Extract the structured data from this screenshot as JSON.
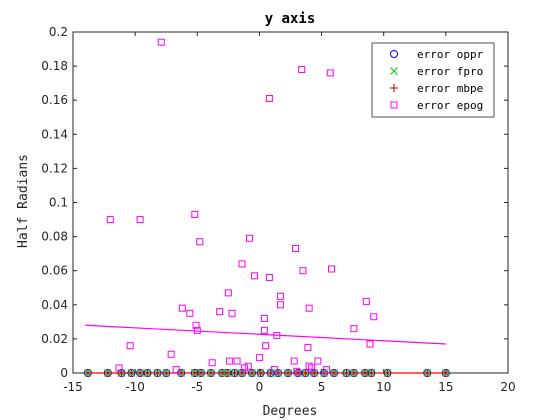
{
  "chart_data": {
    "type": "scatter",
    "title": "y axis",
    "xlabel": "Degrees",
    "ylabel": "Half Radians",
    "xlim": [
      -15,
      20
    ],
    "ylim": [
      0,
      0.2
    ],
    "xticks": [
      -15,
      -10,
      -5,
      0,
      5,
      10,
      15,
      20
    ],
    "yticks": [
      0,
      0.02,
      0.04,
      0.06,
      0.08,
      0.1,
      0.12,
      0.14,
      0.16,
      0.18,
      0.2
    ],
    "xtick_labels": [
      "-15",
      "-10",
      "-5",
      "0",
      "5",
      "10",
      "15",
      "20"
    ],
    "ytick_labels": [
      "0",
      "0.02",
      "0.04",
      "0.06",
      "0.08",
      "0.1",
      "0.12",
      "0.14",
      "0.16",
      "0.18",
      "0.2"
    ],
    "grid": false,
    "legend_position": "top-right",
    "series": [
      {
        "name": "error oppr",
        "marker": "circle",
        "color": "#0000ff",
        "x": [
          -13.8,
          -12.2,
          -11.1,
          -10.3,
          -9.6,
          -9.0,
          -8.2,
          -7.5,
          -6.3,
          -5.2,
          -4.7,
          -3.9,
          -3.0,
          -2.6,
          -2.0,
          -1.4,
          -0.6,
          0.1,
          0.9,
          1.5,
          2.3,
          3.1,
          3.7,
          4.4,
          5.2,
          6.0,
          7.0,
          7.6,
          8.5,
          9.0,
          10.3,
          13.5,
          15.0
        ],
        "y": [
          0,
          0,
          0,
          0,
          0,
          0,
          0,
          0,
          0,
          0,
          0,
          0,
          0,
          0,
          0,
          0,
          0,
          0,
          0,
          0,
          0,
          0,
          0,
          0,
          0,
          0,
          0,
          0,
          0,
          0,
          0,
          0,
          0
        ]
      },
      {
        "name": "error fpro",
        "marker": "x",
        "color": "#00cc00",
        "x": [
          -13.8,
          -12.2,
          -11.1,
          -10.3,
          -9.6,
          -9.0,
          -8.2,
          -7.5,
          -6.3,
          -5.2,
          -4.7,
          -3.9,
          -3.0,
          -2.6,
          -2.0,
          -1.4,
          -0.6,
          0.1,
          0.9,
          1.5,
          2.3,
          3.1,
          3.7,
          4.4,
          5.2,
          6.0,
          7.0,
          7.6,
          8.5,
          9.0,
          10.3,
          13.5,
          15.0
        ],
        "y": [
          0,
          0,
          0,
          0,
          0,
          0,
          0,
          0,
          0,
          0,
          0,
          0,
          0,
          0,
          0,
          0,
          0,
          0,
          0,
          0,
          0,
          0,
          0,
          0,
          0,
          0,
          0,
          0,
          0,
          0,
          0,
          0,
          0
        ]
      },
      {
        "name": "error mbpe",
        "marker": "plus",
        "color": "#cc0000",
        "x": [
          -13.8,
          -12.2,
          -11.1,
          -10.3,
          -9.6,
          -9.0,
          -8.2,
          -7.5,
          -6.3,
          -5.2,
          -4.7,
          -3.9,
          -3.0,
          -2.6,
          -2.0,
          -1.4,
          -0.6,
          0.1,
          0.9,
          1.5,
          2.3,
          3.1,
          3.7,
          4.4,
          5.2,
          6.0,
          7.0,
          7.6,
          8.5,
          9.0,
          10.3,
          13.5,
          15.0
        ],
        "y": [
          0,
          0,
          0,
          0,
          0,
          0,
          0,
          0,
          0,
          0,
          0,
          0,
          0,
          0,
          0,
          0,
          0,
          0,
          0,
          0,
          0,
          0,
          0,
          0,
          0,
          0,
          0,
          0,
          0,
          0,
          0,
          0,
          0
        ]
      },
      {
        "name": "error epog",
        "marker": "square",
        "color": "#ff00ff",
        "x": [
          -7.9,
          0.8,
          3.4,
          5.7,
          -12.0,
          -9.6,
          -5.2,
          -4.8,
          2.9,
          -0.8,
          3.5,
          -1.4,
          5.8,
          -2.5,
          -0.4,
          0.8,
          1.7,
          -6.2,
          -5.6,
          8.6,
          4.0,
          1.7,
          -3.2,
          -2.2,
          0.4,
          9.2,
          -5.1,
          7.6,
          -5.0,
          0.4,
          -10.4,
          1.4,
          0.5,
          8.9,
          -11.3,
          -7.1,
          -6.7,
          -3.8,
          -2.4,
          -1.8,
          3.9,
          0.0,
          2.8,
          4.7,
          5.4,
          -0.9,
          -1.2,
          4.0,
          4.2,
          3.0,
          1.2
        ],
        "y": [
          0.194,
          0.161,
          0.178,
          0.176,
          0.09,
          0.09,
          0.093,
          0.077,
          0.073,
          0.079,
          0.06,
          0.064,
          0.061,
          0.047,
          0.057,
          0.056,
          0.045,
          0.038,
          0.035,
          0.042,
          0.038,
          0.04,
          0.036,
          0.035,
          0.032,
          0.033,
          0.028,
          0.026,
          0.025,
          0.025,
          0.016,
          0.022,
          0.016,
          0.017,
          0.003,
          0.011,
          0.002,
          0.006,
          0.007,
          0.007,
          0.015,
          0.009,
          0.007,
          0.007,
          0.002,
          0.004,
          0.003,
          0.004,
          0.003,
          0.001,
          0.002
        ]
      }
    ],
    "fit_lines": [
      {
        "color": "#ff00ff",
        "x": [
          -14,
          15
        ],
        "y": [
          0.028,
          0.017
        ]
      },
      {
        "color": "#ff0000",
        "x": [
          -14,
          15
        ],
        "y": [
          0,
          0
        ]
      }
    ]
  }
}
